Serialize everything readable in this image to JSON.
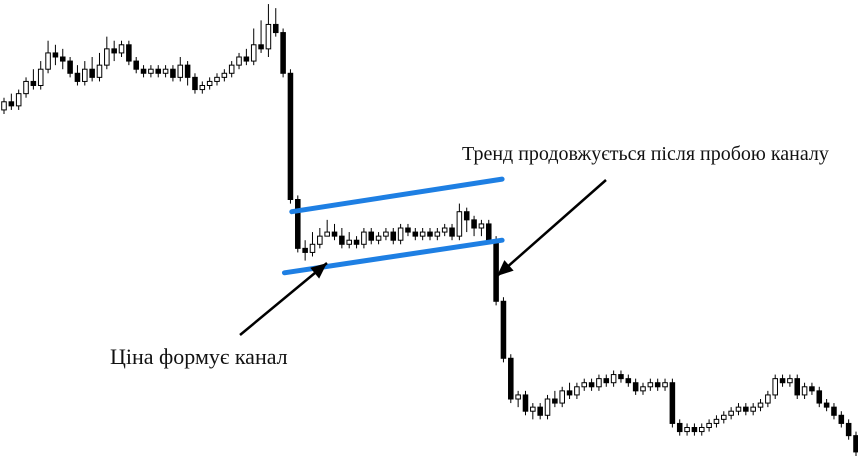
{
  "chart_data": {
    "type": "candlestick",
    "title": "",
    "xlabel": "",
    "ylabel": "",
    "grid": false,
    "axes_visible": false,
    "ylim": [
      0,
      100
    ],
    "candles": [
      {
        "o": 85,
        "c": 87,
        "h": 88,
        "l": 84
      },
      {
        "o": 87,
        "c": 86,
        "h": 89,
        "l": 85
      },
      {
        "o": 86,
        "c": 89,
        "h": 90,
        "l": 85
      },
      {
        "o": 89,
        "c": 92,
        "h": 93,
        "l": 88
      },
      {
        "o": 92,
        "c": 91,
        "h": 95,
        "l": 90
      },
      {
        "o": 91,
        "c": 95,
        "h": 97,
        "l": 90
      },
      {
        "o": 95,
        "c": 99,
        "h": 102,
        "l": 94
      },
      {
        "o": 99,
        "c": 98,
        "h": 101,
        "l": 96
      },
      {
        "o": 98,
        "c": 97,
        "h": 100,
        "l": 95
      },
      {
        "o": 97,
        "c": 94,
        "h": 98,
        "l": 93
      },
      {
        "o": 94,
        "c": 92,
        "h": 96,
        "l": 91
      },
      {
        "o": 92,
        "c": 95,
        "h": 97,
        "l": 91
      },
      {
        "o": 95,
        "c": 93,
        "h": 98,
        "l": 92
      },
      {
        "o": 93,
        "c": 96,
        "h": 99,
        "l": 92
      },
      {
        "o": 96,
        "c": 100,
        "h": 103,
        "l": 95
      },
      {
        "o": 100,
        "c": 99,
        "h": 102,
        "l": 97
      },
      {
        "o": 99,
        "c": 101,
        "h": 102,
        "l": 98
      },
      {
        "o": 101,
        "c": 97,
        "h": 102,
        "l": 96
      },
      {
        "o": 97,
        "c": 95,
        "h": 98,
        "l": 94
      },
      {
        "o": 95,
        "c": 94,
        "h": 96,
        "l": 93
      },
      {
        "o": 94,
        "c": 95,
        "h": 96,
        "l": 93
      },
      {
        "o": 95,
        "c": 94,
        "h": 96,
        "l": 93
      },
      {
        "o": 94,
        "c": 95,
        "h": 96,
        "l": 93
      },
      {
        "o": 95,
        "c": 93,
        "h": 96,
        "l": 92
      },
      {
        "o": 93,
        "c": 96,
        "h": 98,
        "l": 92
      },
      {
        "o": 96,
        "c": 93,
        "h": 97,
        "l": 91
      },
      {
        "o": 93,
        "c": 90,
        "h": 94,
        "l": 89
      },
      {
        "o": 90,
        "c": 91,
        "h": 92,
        "l": 89
      },
      {
        "o": 91,
        "c": 92,
        "h": 93,
        "l": 90
      },
      {
        "o": 92,
        "c": 93,
        "h": 94,
        "l": 91
      },
      {
        "o": 93,
        "c": 94,
        "h": 95,
        "l": 92
      },
      {
        "o": 94,
        "c": 96,
        "h": 97,
        "l": 93
      },
      {
        "o": 96,
        "c": 98,
        "h": 99,
        "l": 95
      },
      {
        "o": 98,
        "c": 97,
        "h": 100,
        "l": 96
      },
      {
        "o": 97,
        "c": 101,
        "h": 105,
        "l": 96
      },
      {
        "o": 101,
        "c": 100,
        "h": 107,
        "l": 99
      },
      {
        "o": 100,
        "c": 106,
        "h": 111,
        "l": 98
      },
      {
        "o": 106,
        "c": 104,
        "h": 110,
        "l": 103
      },
      {
        "o": 104,
        "c": 94,
        "h": 105,
        "l": 93
      },
      {
        "o": 94,
        "c": 63,
        "h": 95,
        "l": 62
      },
      {
        "o": 63,
        "c": 51,
        "h": 64,
        "l": 50
      },
      {
        "o": 51,
        "c": 50,
        "h": 53,
        "l": 48
      },
      {
        "o": 50,
        "c": 52,
        "h": 55,
        "l": 49
      },
      {
        "o": 52,
        "c": 54,
        "h": 56,
        "l": 51
      },
      {
        "o": 54,
        "c": 55,
        "h": 58,
        "l": 54
      },
      {
        "o": 55,
        "c": 54,
        "h": 57,
        "l": 53
      },
      {
        "o": 54,
        "c": 52,
        "h": 56,
        "l": 51
      },
      {
        "o": 52,
        "c": 53,
        "h": 55,
        "l": 51
      },
      {
        "o": 53,
        "c": 52,
        "h": 54,
        "l": 51
      },
      {
        "o": 52,
        "c": 55,
        "h": 56,
        "l": 51
      },
      {
        "o": 55,
        "c": 53,
        "h": 56,
        "l": 52
      },
      {
        "o": 53,
        "c": 54,
        "h": 55,
        "l": 52
      },
      {
        "o": 54,
        "c": 55,
        "h": 56,
        "l": 53
      },
      {
        "o": 55,
        "c": 53,
        "h": 56,
        "l": 52
      },
      {
        "o": 53,
        "c": 56,
        "h": 57,
        "l": 52
      },
      {
        "o": 56,
        "c": 55,
        "h": 57,
        "l": 54
      },
      {
        "o": 55,
        "c": 54,
        "h": 56,
        "l": 53
      },
      {
        "o": 54,
        "c": 55,
        "h": 56,
        "l": 53
      },
      {
        "o": 55,
        "c": 54,
        "h": 56,
        "l": 53
      },
      {
        "o": 54,
        "c": 55,
        "h": 56,
        "l": 53
      },
      {
        "o": 55,
        "c": 56,
        "h": 57,
        "l": 54
      },
      {
        "o": 56,
        "c": 54,
        "h": 57,
        "l": 53
      },
      {
        "o": 54,
        "c": 60,
        "h": 62,
        "l": 53
      },
      {
        "o": 60,
        "c": 58,
        "h": 61,
        "l": 55
      },
      {
        "o": 58,
        "c": 56,
        "h": 59,
        "l": 54
      },
      {
        "o": 56,
        "c": 57,
        "h": 58,
        "l": 54
      },
      {
        "o": 57,
        "c": 53,
        "h": 58,
        "l": 52
      },
      {
        "o": 53,
        "c": 38,
        "h": 54,
        "l": 37
      },
      {
        "o": 38,
        "c": 24,
        "h": 39,
        "l": 23
      },
      {
        "o": 24,
        "c": 14,
        "h": 25,
        "l": 13
      },
      {
        "o": 14,
        "c": 15,
        "h": 16,
        "l": 12
      },
      {
        "o": 15,
        "c": 11,
        "h": 16,
        "l": 10
      },
      {
        "o": 11,
        "c": 12,
        "h": 13,
        "l": 9
      },
      {
        "o": 12,
        "c": 10,
        "h": 13,
        "l": 9
      },
      {
        "o": 10,
        "c": 14,
        "h": 15,
        "l": 9
      },
      {
        "o": 14,
        "c": 13,
        "h": 16,
        "l": 12
      },
      {
        "o": 13,
        "c": 16,
        "h": 17,
        "l": 12
      },
      {
        "o": 16,
        "c": 15,
        "h": 18,
        "l": 14
      },
      {
        "o": 15,
        "c": 17,
        "h": 18,
        "l": 14
      },
      {
        "o": 17,
        "c": 18,
        "h": 19,
        "l": 16
      },
      {
        "o": 18,
        "c": 17,
        "h": 19,
        "l": 16
      },
      {
        "o": 17,
        "c": 19,
        "h": 20,
        "l": 16
      },
      {
        "o": 19,
        "c": 18,
        "h": 20,
        "l": 17
      },
      {
        "o": 18,
        "c": 20,
        "h": 21,
        "l": 17
      },
      {
        "o": 20,
        "c": 19,
        "h": 21,
        "l": 18
      },
      {
        "o": 19,
        "c": 18,
        "h": 20,
        "l": 17
      },
      {
        "o": 18,
        "c": 16,
        "h": 19,
        "l": 15
      },
      {
        "o": 16,
        "c": 17,
        "h": 18,
        "l": 15
      },
      {
        "o": 17,
        "c": 18,
        "h": 19,
        "l": 16
      },
      {
        "o": 18,
        "c": 17,
        "h": 19,
        "l": 16
      },
      {
        "o": 17,
        "c": 18,
        "h": 19,
        "l": 16
      },
      {
        "o": 18,
        "c": 8,
        "h": 19,
        "l": 7
      },
      {
        "o": 8,
        "c": 6,
        "h": 9,
        "l": 5
      },
      {
        "o": 6,
        "c": 7,
        "h": 8,
        "l": 5
      },
      {
        "o": 7,
        "c": 6,
        "h": 8,
        "l": 5
      },
      {
        "o": 6,
        "c": 7,
        "h": 8,
        "l": 5
      },
      {
        "o": 7,
        "c": 8,
        "h": 9,
        "l": 6
      },
      {
        "o": 8,
        "c": 9,
        "h": 10,
        "l": 7
      },
      {
        "o": 9,
        "c": 10,
        "h": 11,
        "l": 8
      },
      {
        "o": 10,
        "c": 11,
        "h": 12,
        "l": 9
      },
      {
        "o": 11,
        "c": 12,
        "h": 13,
        "l": 10
      },
      {
        "o": 12,
        "c": 11,
        "h": 13,
        "l": 10
      },
      {
        "o": 11,
        "c": 12,
        "h": 13,
        "l": 10
      },
      {
        "o": 12,
        "c": 13,
        "h": 14,
        "l": 11
      },
      {
        "o": 13,
        "c": 15,
        "h": 16,
        "l": 12
      },
      {
        "o": 15,
        "c": 19,
        "h": 20,
        "l": 14
      },
      {
        "o": 19,
        "c": 18,
        "h": 20,
        "l": 17
      },
      {
        "o": 18,
        "c": 19,
        "h": 20,
        "l": 17
      },
      {
        "o": 19,
        "c": 15,
        "h": 20,
        "l": 14
      },
      {
        "o": 15,
        "c": 17,
        "h": 18,
        "l": 14
      },
      {
        "o": 17,
        "c": 16,
        "h": 18,
        "l": 15
      },
      {
        "o": 16,
        "c": 13,
        "h": 17,
        "l": 12
      },
      {
        "o": 13,
        "c": 12,
        "h": 14,
        "l": 11
      },
      {
        "o": 12,
        "c": 10,
        "h": 13,
        "l": 9
      },
      {
        "o": 10,
        "c": 8,
        "h": 11,
        "l": 7
      },
      {
        "o": 8,
        "c": 5,
        "h": 9,
        "l": 4
      },
      {
        "o": 5,
        "c": 1,
        "h": 6,
        "l": 0
      }
    ],
    "channel": {
      "color": "#1e7fe3",
      "upper": {
        "from": {
          "index": 40,
          "value": 60
        },
        "to": {
          "index": 67,
          "value": 68
        }
      },
      "lower": {
        "from": {
          "index": 39,
          "value": 45
        },
        "to": {
          "index": 67,
          "value": 53
        }
      }
    },
    "annotations": [
      {
        "id": "break",
        "text": "Тренд продовжується після пробою каналу"
      },
      {
        "id": "forms",
        "text": "Ціна формує канал"
      }
    ]
  }
}
